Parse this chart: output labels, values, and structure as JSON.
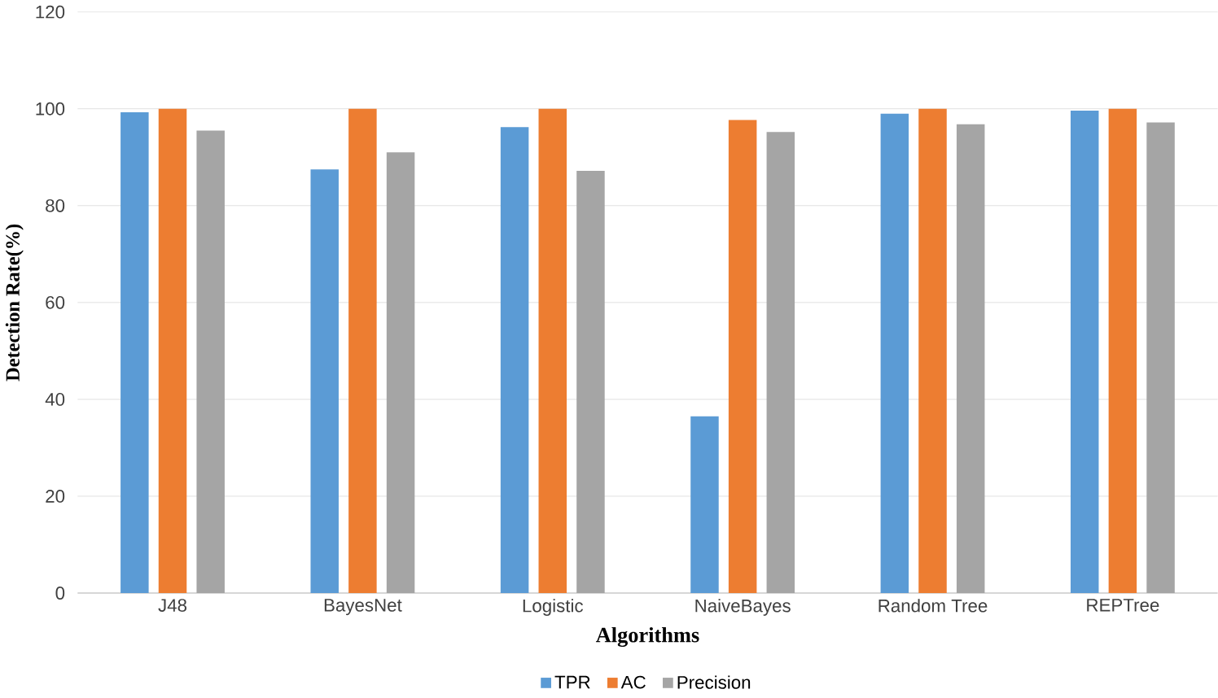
{
  "chart_data": {
    "type": "bar",
    "xlabel": "Algorithms",
    "ylabel": "Detection Rate(%)",
    "categories": [
      "J48",
      "BayesNet",
      "Logistic",
      "NaiveBayes",
      "Random Tree",
      "REPTree"
    ],
    "series": [
      {
        "name": "TPR",
        "color": "#5b9bd5",
        "values": [
          99.3,
          87.5,
          96.2,
          36.5,
          99,
          99.6
        ]
      },
      {
        "name": "AC",
        "color": "#ed7d31",
        "values": [
          100,
          100,
          100,
          97.7,
          100,
          100
        ]
      },
      {
        "name": "Precision",
        "color": "#a5a5a5",
        "values": [
          95.5,
          91,
          87.2,
          95.2,
          96.8,
          97.2
        ]
      }
    ],
    "ylim": [
      0,
      120
    ],
    "yticks": [
      0,
      20,
      40,
      60,
      80,
      100,
      120
    ],
    "grid": "y",
    "legend": "bottom"
  }
}
